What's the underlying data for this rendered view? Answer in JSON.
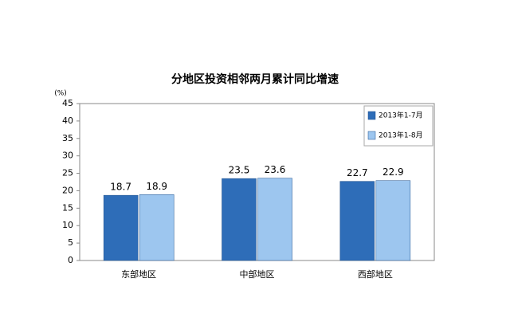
{
  "chart_data": {
    "type": "bar",
    "title": "分地区投资相邻两月累计同比增速",
    "y_label": "(%)",
    "categories": [
      "东部地区",
      "中部地区",
      "西部地区"
    ],
    "series": [
      {
        "name": "2013年1-7月",
        "color": "#2e6db8",
        "values": [
          18.7,
          23.5,
          22.7
        ]
      },
      {
        "name": "2013年1-8月",
        "color": "#9dc6ef",
        "values": [
          18.9,
          23.6,
          22.9
        ]
      }
    ],
    "ylim": [
      0,
      45
    ],
    "yticks": [
      0,
      5,
      10,
      15,
      20,
      25,
      30,
      35,
      40,
      45
    ],
    "grid": false,
    "legend": "top-right"
  }
}
